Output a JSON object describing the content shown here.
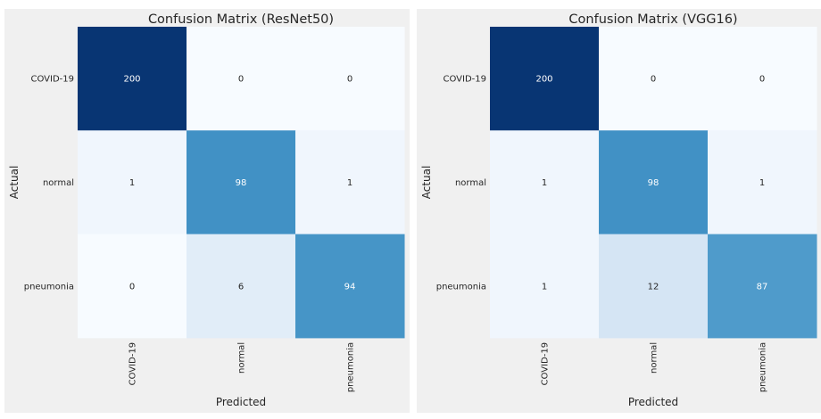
{
  "chart_data": [
    {
      "type": "heatmap",
      "title": "Confusion Matrix (ResNet50)",
      "xlabel": "Predicted",
      "ylabel": "Actual",
      "x_categories": [
        "COVID-19",
        "normal",
        "pneumonia"
      ],
      "y_categories": [
        "COVID-19",
        "normal",
        "pneumonia"
      ],
      "values": [
        [
          200,
          0,
          0
        ],
        [
          1,
          98,
          1
        ],
        [
          0,
          6,
          94
        ]
      ],
      "colormap": "Blues",
      "value_range": [
        0,
        200
      ]
    },
    {
      "type": "heatmap",
      "title": "Confusion Matrix (VGG16)",
      "xlabel": "Predicted",
      "ylabel": "Actual",
      "x_categories": [
        "COVID-19",
        "normal",
        "pneumonia"
      ],
      "y_categories": [
        "COVID-19",
        "normal",
        "pneumonia"
      ],
      "values": [
        [
          200,
          0,
          0
        ],
        [
          1,
          98,
          1
        ],
        [
          1,
          12,
          87
        ]
      ],
      "colormap": "Blues",
      "value_range": [
        0,
        200
      ]
    }
  ]
}
